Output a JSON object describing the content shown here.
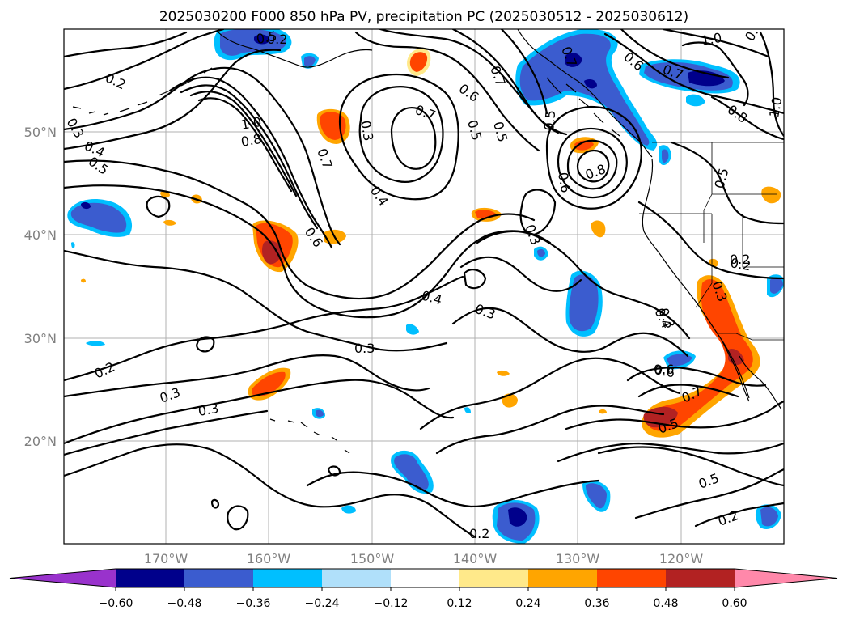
{
  "title": "2025030200 F000 850 hPa PV, precipitation PC (2025030512 - 2025030612)",
  "map": {
    "region": "North Pacific / western North America",
    "projection": "PlateCarree",
    "lat_ticks": [
      {
        "id": "50",
        "label": "50°N"
      },
      {
        "id": "40",
        "label": "40°N"
      },
      {
        "id": "30",
        "label": "30°N"
      },
      {
        "id": "20",
        "label": "20°N"
      }
    ],
    "lon_ticks": [
      {
        "id": "170",
        "label": "170°W"
      },
      {
        "id": "160",
        "label": "160°W"
      },
      {
        "id": "150",
        "label": "150°W"
      },
      {
        "id": "140",
        "label": "140°W"
      },
      {
        "id": "130",
        "label": "130°W"
      },
      {
        "id": "120",
        "label": "120°W"
      }
    ],
    "grid": true,
    "contour_field": "850 hPa PV",
    "contour_labels": [
      "0.2",
      "0.3",
      "0.4",
      "0.5",
      "1.0",
      "0.8",
      "0.5",
      "0.3",
      "0.4",
      "0.3",
      "0.7",
      "0.6",
      "0.5",
      "0.7",
      "0.5",
      "0.6",
      "0.8",
      "0.6",
      "0.3",
      "0.7",
      "0.3",
      "0.4",
      "0.4",
      "0.6",
      "0.3",
      "0.3",
      "0.2",
      "0.3",
      "0.2",
      "0.5",
      "0.2",
      "0.8",
      "1.0",
      "0.6",
      "0.7",
      "0.7",
      "1.0",
      "0.7",
      "0.5",
      "0.2",
      "0.3",
      "0.6",
      "0.7",
      "0.5",
      "0.5",
      "0.2",
      "0.2"
    ],
    "shading_field": "precipitation PC"
  },
  "colorbar": {
    "ticks": [
      "−0.60",
      "−0.48",
      "−0.36",
      "−0.24",
      "−0.12",
      "0.12",
      "0.24",
      "0.36",
      "0.48",
      "0.60"
    ],
    "colors": [
      "#9932cc",
      "#00008b",
      "#3b5ccf",
      "#00bfff",
      "#b0e0fa",
      "#ffffff",
      "#ffe98a",
      "#ffa500",
      "#ff4500",
      "#b22222",
      "#ff88aa"
    ],
    "extend": "both"
  },
  "palette": {
    "pos_low": "#ffe98a",
    "pos_mid": "#ffa500",
    "pos_hi": "#ff4500",
    "pos_top": "#b22222",
    "neg_low": "#00bfff",
    "neg_mid": "#3b5ccf",
    "neg_hi": "#00008b"
  }
}
